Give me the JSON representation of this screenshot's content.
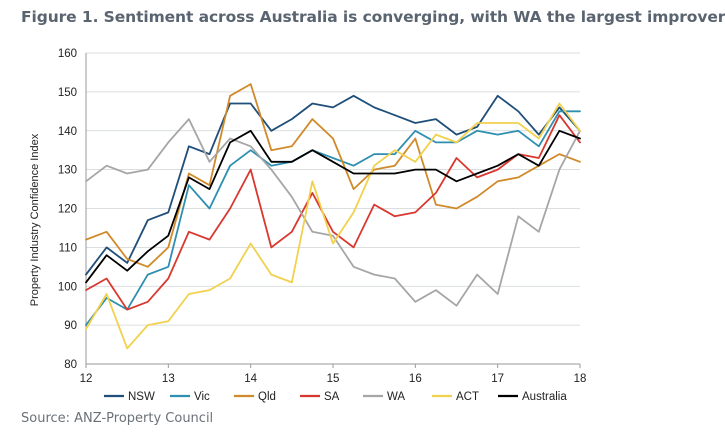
{
  "title": "Figure 1. Sentiment across Australia is converging, with WA the largest improver",
  "source": "Source: ANZ-Property Council",
  "colors": {
    "NSW": "#1f4e79",
    "Vic": "#2e8fb0",
    "Qld": "#d08a2a",
    "SA": "#d9382f",
    "WA": "#a6a6a6",
    "ACT": "#f2d14e",
    "Australia": "#000000"
  },
  "chart_data": {
    "type": "line",
    "title": "Figure 1. Sentiment across Australia is converging, with WA the largest improver",
    "xlabel": "",
    "ylabel": "Property Industry Confidence Index",
    "ylim": [
      80,
      160
    ],
    "yticks": [
      80,
      90,
      100,
      110,
      120,
      130,
      140,
      150,
      160
    ],
    "xlim": [
      12,
      18
    ],
    "xticks": [
      "12",
      "13",
      "14",
      "15",
      "16",
      "17",
      "18"
    ],
    "grid": "horizontal",
    "legend": "bottom",
    "x": [
      12,
      12.25,
      12.5,
      12.75,
      13,
      13.25,
      13.5,
      13.75,
      14,
      14.25,
      14.5,
      14.75,
      15,
      15.25,
      15.5,
      15.75,
      16,
      16.25,
      16.5,
      16.75,
      17,
      17.25,
      17.5,
      17.75,
      18
    ],
    "series": [
      {
        "name": "NSW",
        "values": [
          103,
          110,
          106,
          117,
          119,
          136,
          134,
          147,
          147,
          140,
          143,
          147,
          146,
          149,
          146,
          144,
          142,
          143,
          139,
          141,
          149,
          145,
          139,
          146,
          140
        ]
      },
      {
        "name": "Vic",
        "values": [
          90,
          97,
          94,
          103,
          105,
          126,
          120,
          131,
          135,
          131,
          132,
          135,
          133,
          131,
          134,
          134,
          140,
          137,
          137,
          140,
          139,
          140,
          136,
          145,
          145
        ]
      },
      {
        "name": "Qld",
        "values": [
          112,
          114,
          107,
          105,
          110,
          129,
          126,
          149,
          152,
          135,
          136,
          143,
          138,
          125,
          130,
          131,
          138,
          121,
          120,
          123,
          127,
          128,
          131,
          134,
          132
        ]
      },
      {
        "name": "SA",
        "values": [
          99,
          102,
          94,
          96,
          102,
          114,
          112,
          120,
          130,
          110,
          114,
          124,
          114,
          110,
          121,
          118,
          119,
          124,
          133,
          128,
          130,
          134,
          133,
          144,
          137
        ]
      },
      {
        "name": "WA",
        "values": [
          127,
          131,
          129,
          130,
          137,
          143,
          132,
          138,
          136,
          130,
          123,
          114,
          113,
          105,
          103,
          102,
          96,
          99,
          95,
          103,
          98,
          118,
          114,
          130,
          140
        ]
      },
      {
        "name": "ACT",
        "values": [
          89,
          98,
          84,
          90,
          91,
          98,
          99,
          102,
          111,
          103,
          101,
          127,
          111,
          119,
          131,
          135,
          132,
          139,
          137,
          142,
          142,
          142,
          138,
          147,
          140
        ]
      },
      {
        "name": "Australia",
        "values": [
          101,
          108,
          104,
          109,
          113,
          128,
          125,
          137,
          140,
          132,
          132,
          135,
          132,
          129,
          129,
          129,
          130,
          130,
          127,
          129,
          131,
          134,
          131,
          140,
          138
        ]
      }
    ]
  }
}
